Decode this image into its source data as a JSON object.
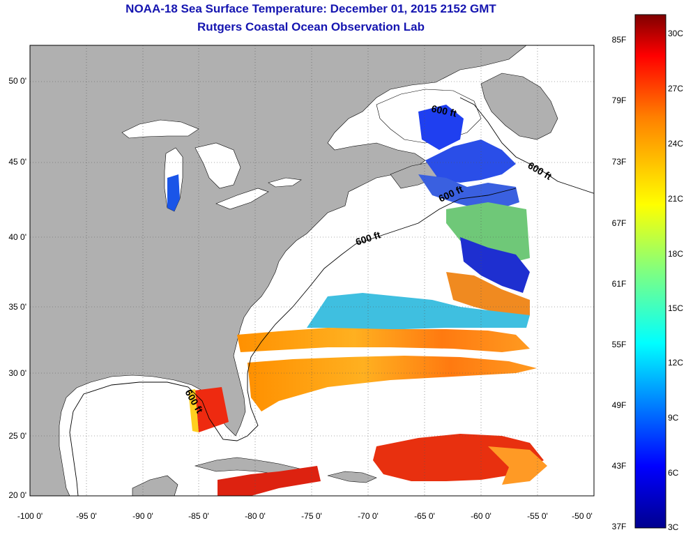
{
  "title": {
    "line1": "NOAA-18 Sea Surface Temperature:  December 01, 2015 2152 GMT",
    "line2": "Rutgers Coastal Ocean Observation Lab"
  },
  "map": {
    "lat_ticks": [
      "50 0'",
      "45 0'",
      "40 0'",
      "35 0'",
      "30 0'",
      "25 0'",
      "20 0'"
    ],
    "lon_ticks": [
      "-100 0'",
      "-95 0'",
      "-90 0'",
      "-85 0'",
      "-80 0'",
      "-75 0'",
      "-70 0'",
      "-65 0'",
      "-60 0'",
      "-55 0'",
      "-50 0'"
    ],
    "land_color": "#b0b0b0",
    "contour_labels": [
      "600 ft",
      "600 ft",
      "600 ft",
      "600 ft",
      "600 ft"
    ]
  },
  "colorbar": {
    "f_labels": [
      "85F",
      "79F",
      "73F",
      "67F",
      "61F",
      "55F",
      "49F",
      "43F",
      "37F"
    ],
    "c_labels": [
      "30C",
      "27C",
      "24C",
      "21C",
      "18C",
      "15C",
      "12C",
      "9C",
      "6C",
      "3C"
    ],
    "colors": [
      "#7f0000",
      "#ff0000",
      "#ff8000",
      "#ffff00",
      "#80ff80",
      "#00ffff",
      "#0080ff",
      "#0000ff",
      "#00008f"
    ]
  }
}
